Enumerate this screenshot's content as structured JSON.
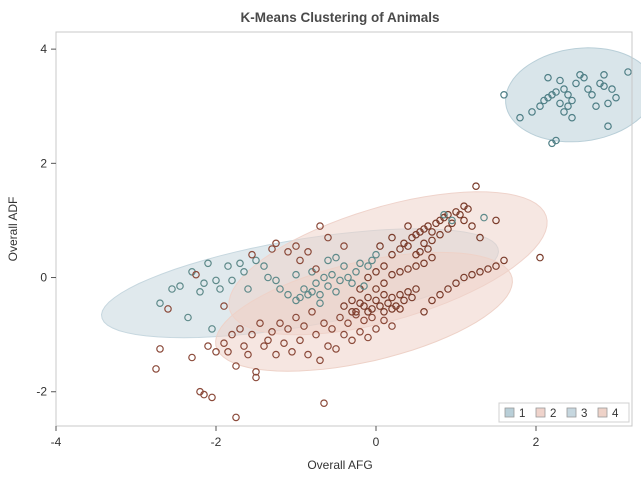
{
  "chart_data": {
    "type": "scatter",
    "title": "K-Means Clustering of Animals",
    "xlabel": "Overall AFG",
    "ylabel": "Overall ADF",
    "xlim": [
      -4,
      3.2
    ],
    "ylim": [
      -2.6,
      4.3
    ],
    "xticks": [
      -4,
      -2,
      0,
      2
    ],
    "yticks": [
      -2,
      0,
      2,
      4
    ],
    "tick_labels": {
      "x": [
        "-4",
        "-2",
        "0",
        "2"
      ],
      "y": [
        "-2",
        "0",
        "2",
        "4"
      ]
    },
    "grid": false,
    "legend_position": "bottom-right",
    "ellipse_style": "filled confidence ellipses behind points",
    "series": [
      {
        "name": "1",
        "color": "#4f7f86",
        "ellipse_fill": "#b9cfd8",
        "ellipse": {
          "cx": 2.55,
          "cy": 3.2,
          "rx": 0.95,
          "ry": 0.8,
          "angle_deg": 22
        },
        "points": [
          [
            1.6,
            3.2
          ],
          [
            1.8,
            2.8
          ],
          [
            1.95,
            2.9
          ],
          [
            2.05,
            3.0
          ],
          [
            2.1,
            3.1
          ],
          [
            2.15,
            3.15
          ],
          [
            2.2,
            3.2
          ],
          [
            2.25,
            3.25
          ],
          [
            2.3,
            3.05
          ],
          [
            2.35,
            3.3
          ],
          [
            2.4,
            3.2
          ],
          [
            2.15,
            3.5
          ],
          [
            2.3,
            3.45
          ],
          [
            2.45,
            3.1
          ],
          [
            2.5,
            3.4
          ],
          [
            2.55,
            3.55
          ],
          [
            2.6,
            3.5
          ],
          [
            2.65,
            3.3
          ],
          [
            2.7,
            3.2
          ],
          [
            2.75,
            3.0
          ],
          [
            2.8,
            3.4
          ],
          [
            2.85,
            3.35
          ],
          [
            2.9,
            3.05
          ],
          [
            2.95,
            3.3
          ],
          [
            3.0,
            3.15
          ],
          [
            3.15,
            3.6
          ],
          [
            2.2,
            2.35
          ],
          [
            2.25,
            2.4
          ],
          [
            2.35,
            2.9
          ],
          [
            2.45,
            2.8
          ],
          [
            2.9,
            2.65
          ],
          [
            2.85,
            3.55
          ],
          [
            2.4,
            3.0
          ]
        ]
      },
      {
        "name": "2",
        "color": "#7a3b2a",
        "ellipse_fill": "#efd3cb",
        "ellipse": {
          "cx": 0.15,
          "cy": 0.25,
          "rx": 2.15,
          "ry": 0.95,
          "angle_deg": 25
        },
        "points": [
          [
            -0.4,
            -0.5
          ],
          [
            -0.3,
            -0.4
          ],
          [
            -0.25,
            -0.6
          ],
          [
            -0.2,
            -0.45
          ],
          [
            -0.15,
            -0.5
          ],
          [
            -0.1,
            -0.35
          ],
          [
            -0.05,
            -0.55
          ],
          [
            0.0,
            -0.4
          ],
          [
            0.05,
            -0.5
          ],
          [
            0.1,
            -0.3
          ],
          [
            0.15,
            -0.45
          ],
          [
            0.2,
            -0.35
          ],
          [
            0.25,
            -0.5
          ],
          [
            0.3,
            -0.3
          ],
          [
            0.35,
            -0.4
          ],
          [
            0.4,
            -0.25
          ],
          [
            0.45,
            -0.35
          ],
          [
            0.5,
            -0.2
          ],
          [
            0.0,
            -0.2
          ],
          [
            -0.1,
            -0.6
          ],
          [
            0.1,
            -0.6
          ],
          [
            0.2,
            -0.55
          ],
          [
            -0.3,
            -0.6
          ],
          [
            0.3,
            -0.55
          ],
          [
            -0.2,
            -0.2
          ],
          [
            0.1,
            -0.1
          ],
          [
            0.2,
            0.4
          ],
          [
            0.3,
            0.5
          ],
          [
            0.35,
            0.6
          ],
          [
            0.4,
            0.55
          ],
          [
            0.45,
            0.7
          ],
          [
            0.5,
            0.75
          ],
          [
            0.55,
            0.8
          ],
          [
            0.6,
            0.85
          ],
          [
            0.65,
            0.9
          ],
          [
            0.7,
            0.8
          ],
          [
            0.75,
            0.95
          ],
          [
            0.8,
            1.0
          ],
          [
            0.85,
            1.05
          ],
          [
            0.9,
            1.1
          ],
          [
            0.95,
            0.95
          ],
          [
            1.0,
            1.15
          ],
          [
            1.05,
            1.1
          ],
          [
            1.1,
            1.0
          ],
          [
            1.15,
            1.2
          ],
          [
            1.2,
            0.9
          ],
          [
            1.25,
            1.6
          ],
          [
            0.6,
            0.6
          ],
          [
            0.7,
            0.65
          ],
          [
            0.8,
            0.75
          ],
          [
            0.9,
            0.85
          ],
          [
            0.5,
            0.4
          ],
          [
            0.55,
            0.45
          ],
          [
            0.65,
            0.5
          ],
          [
            0.3,
            0.1
          ],
          [
            0.4,
            0.15
          ],
          [
            0.5,
            0.2
          ],
          [
            0.6,
            0.25
          ],
          [
            0.7,
            0.35
          ],
          [
            0.2,
            0.05
          ],
          [
            0.1,
            0.2
          ],
          [
            0.0,
            0.1
          ],
          [
            -0.1,
            0.0
          ],
          [
            0.9,
            -0.2
          ],
          [
            1.0,
            -0.1
          ],
          [
            1.1,
            0.0
          ],
          [
            1.2,
            0.05
          ],
          [
            1.3,
            0.1
          ],
          [
            1.4,
            0.15
          ],
          [
            1.5,
            0.2
          ],
          [
            1.6,
            0.3
          ],
          [
            0.6,
            -0.6
          ],
          [
            0.7,
            -0.4
          ],
          [
            0.8,
            -0.3
          ],
          [
            2.05,
            0.35
          ],
          [
            1.1,
            1.25
          ],
          [
            0.4,
            0.9
          ],
          [
            1.3,
            0.7
          ],
          [
            1.5,
            1.0
          ],
          [
            0.2,
            0.7
          ],
          [
            0.05,
            0.55
          ]
        ]
      },
      {
        "name": "3",
        "color": "#5e8a8a",
        "ellipse_fill": "#c6d7df",
        "ellipse": {
          "cx": -0.95,
          "cy": -0.1,
          "rx": 2.55,
          "ry": 0.75,
          "angle_deg": 14
        },
        "points": [
          [
            -2.7,
            -0.45
          ],
          [
            -2.55,
            -0.2
          ],
          [
            -2.45,
            -0.15
          ],
          [
            -2.3,
            0.1
          ],
          [
            -2.2,
            -0.25
          ],
          [
            -2.15,
            -0.1
          ],
          [
            -2.1,
            0.25
          ],
          [
            -2.0,
            -0.05
          ],
          [
            -1.95,
            -0.2
          ],
          [
            -1.85,
            0.2
          ],
          [
            -1.8,
            -0.05
          ],
          [
            -1.7,
            0.25
          ],
          [
            -1.65,
            0.1
          ],
          [
            -1.6,
            -0.2
          ],
          [
            -1.5,
            0.3
          ],
          [
            -1.4,
            0.2
          ],
          [
            -1.35,
            0.0
          ],
          [
            -1.2,
            -0.2
          ],
          [
            -1.1,
            -0.3
          ],
          [
            -1.0,
            -0.4
          ],
          [
            -0.95,
            -0.35
          ],
          [
            -0.9,
            -0.2
          ],
          [
            -0.85,
            -0.3
          ],
          [
            -0.8,
            -0.25
          ],
          [
            -0.75,
            -0.1
          ],
          [
            -0.7,
            -0.3
          ],
          [
            -0.65,
            0.0
          ],
          [
            -0.6,
            -0.15
          ],
          [
            -0.55,
            0.05
          ],
          [
            -0.5,
            -0.25
          ],
          [
            -0.45,
            -0.05
          ],
          [
            -0.4,
            0.2
          ],
          [
            -0.35,
            0.0
          ],
          [
            -0.3,
            -0.1
          ],
          [
            -0.25,
            0.1
          ],
          [
            -0.2,
            0.25
          ],
          [
            -0.15,
            -0.15
          ],
          [
            -0.1,
            0.2
          ],
          [
            -0.05,
            0.3
          ],
          [
            0.0,
            0.4
          ],
          [
            -0.5,
            0.35
          ],
          [
            -0.6,
            0.3
          ],
          [
            -0.8,
            0.1
          ],
          [
            -1.0,
            0.05
          ],
          [
            -2.05,
            -0.9
          ],
          [
            -2.35,
            -0.7
          ],
          [
            -1.25,
            -0.05
          ],
          [
            -0.7,
            -0.45
          ],
          [
            0.85,
            1.1
          ],
          [
            0.95,
            1.0
          ],
          [
            1.35,
            1.05
          ]
        ]
      },
      {
        "name": "4",
        "color": "#8b4a3a",
        "ellipse_fill": "#eed2c8",
        "ellipse": {
          "cx": -0.15,
          "cy": -0.6,
          "rx": 1.95,
          "ry": 0.85,
          "angle_deg": 20
        },
        "points": [
          [
            -2.75,
            -1.6
          ],
          [
            -2.7,
            -1.25
          ],
          [
            -2.3,
            -1.4
          ],
          [
            -2.2,
            -2.0
          ],
          [
            -2.15,
            -2.05
          ],
          [
            -2.05,
            -2.1
          ],
          [
            -2.1,
            -1.2
          ],
          [
            -2.0,
            -1.3
          ],
          [
            -1.9,
            -1.15
          ],
          [
            -1.85,
            -1.3
          ],
          [
            -1.8,
            -1.0
          ],
          [
            -1.75,
            -1.55
          ],
          [
            -1.7,
            -0.9
          ],
          [
            -1.65,
            -1.2
          ],
          [
            -1.6,
            -1.35
          ],
          [
            -1.55,
            -1.0
          ],
          [
            -1.5,
            -1.65
          ],
          [
            -1.45,
            -0.8
          ],
          [
            -1.4,
            -1.2
          ],
          [
            -1.35,
            -1.1
          ],
          [
            -1.3,
            -0.95
          ],
          [
            -1.25,
            -1.35
          ],
          [
            -1.2,
            -0.8
          ],
          [
            -1.15,
            -1.15
          ],
          [
            -1.1,
            -0.9
          ],
          [
            -1.05,
            -1.3
          ],
          [
            -1.0,
            -0.7
          ],
          [
            -0.95,
            -1.1
          ],
          [
            -0.9,
            -0.85
          ],
          [
            -0.85,
            -1.35
          ],
          [
            -0.8,
            -0.6
          ],
          [
            -0.75,
            -1.0
          ],
          [
            -0.7,
            -1.45
          ],
          [
            -0.65,
            -0.8
          ],
          [
            -0.6,
            -1.2
          ],
          [
            -0.55,
            -0.9
          ],
          [
            -0.5,
            -1.25
          ],
          [
            -0.45,
            -0.7
          ],
          [
            -0.4,
            -1.0
          ],
          [
            -0.35,
            -0.8
          ],
          [
            -0.3,
            -1.1
          ],
          [
            -0.25,
            -0.65
          ],
          [
            -0.2,
            -0.95
          ],
          [
            -0.15,
            -0.75
          ],
          [
            -0.1,
            -1.05
          ],
          [
            -0.05,
            -0.7
          ],
          [
            0.0,
            -0.9
          ],
          [
            0.1,
            -0.75
          ],
          [
            0.2,
            -0.85
          ],
          [
            -1.75,
            -2.45
          ],
          [
            -0.65,
            -2.2
          ],
          [
            -1.5,
            -1.75
          ],
          [
            -1.3,
            0.5
          ],
          [
            -1.25,
            0.6
          ],
          [
            -1.1,
            0.45
          ],
          [
            -1.0,
            0.55
          ],
          [
            -0.95,
            0.3
          ],
          [
            -0.85,
            0.45
          ],
          [
            -0.7,
            0.9
          ],
          [
            -0.6,
            0.7
          ],
          [
            -0.4,
            0.55
          ],
          [
            -1.55,
            0.4
          ],
          [
            -2.25,
            0.05
          ],
          [
            -2.6,
            -0.55
          ],
          [
            -1.9,
            -0.5
          ],
          [
            -0.75,
            0.15
          ]
        ]
      }
    ]
  }
}
